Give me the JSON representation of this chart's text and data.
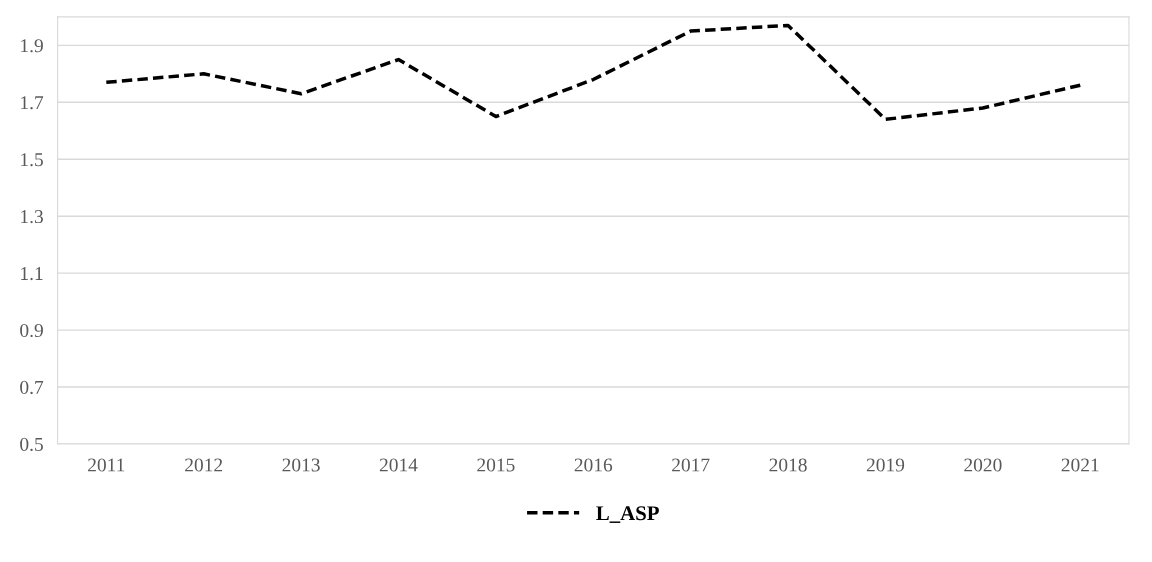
{
  "chart_data": {
    "type": "line",
    "categories": [
      "2011",
      "2012",
      "2013",
      "2014",
      "2015",
      "2016",
      "2017",
      "2018",
      "2019",
      "2020",
      "2021"
    ],
    "series": [
      {
        "name": "L_ASP",
        "color": "#000000",
        "values": [
          1.77,
          1.8,
          1.73,
          1.85,
          1.65,
          1.78,
          1.95,
          1.97,
          1.64,
          1.68,
          1.76
        ]
      }
    ],
    "ylim": [
      0.5,
      2.0
    ],
    "yticks": [
      0.5,
      0.7,
      0.9,
      1.1,
      1.3,
      1.5,
      1.7,
      1.9
    ],
    "grid": "y",
    "legend": "bottom",
    "line_style": "dashed",
    "marker": "none"
  }
}
